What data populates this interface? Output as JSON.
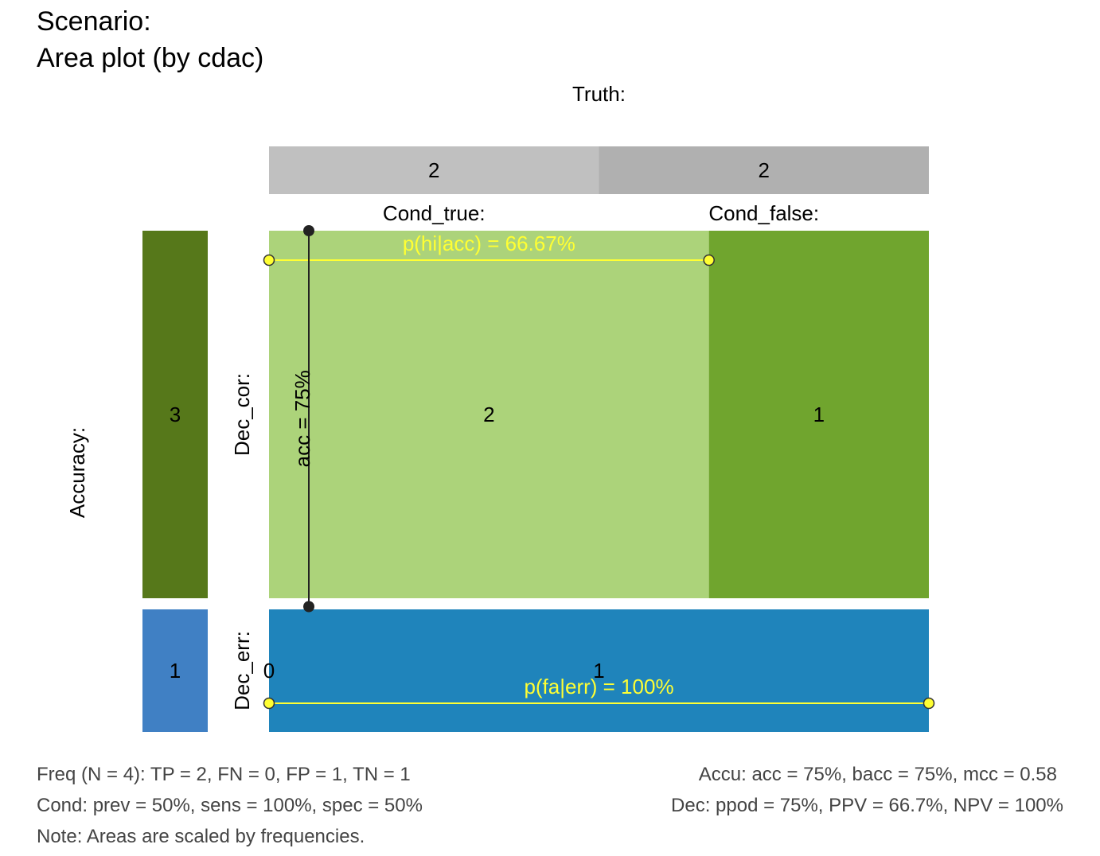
{
  "title": "Scenario:",
  "subtitle": "Area plot (by cdac)",
  "colors": {
    "cond_true": "#c0c0c0",
    "cond_false": "#b0b0b0",
    "dec_cor": "#56781a",
    "dec_err": "#4080c4",
    "hi": "#acd37a",
    "cr": "#70a52e",
    "fa_err": "#1f84bb",
    "prob_line": "#ffff33",
    "acc_line": "#222222"
  },
  "chart_data": {
    "type": "area",
    "N": 4,
    "labels": {
      "truth": "Truth:",
      "cond_true": "Cond_true:",
      "cond_false": "Cond_false:",
      "accuracy": "Accuracy:",
      "dec_cor": "Dec_cor:",
      "dec_err": "Dec_err:"
    },
    "truth_bar": [
      {
        "name": "cond_true",
        "value": 2
      },
      {
        "name": "cond_false",
        "value": 2
      }
    ],
    "accuracy_bar": [
      {
        "name": "dec_cor",
        "value": 3
      },
      {
        "name": "dec_err",
        "value": 1
      }
    ],
    "cells": {
      "dec_cor": [
        {
          "name": "hi",
          "value": 2
        },
        {
          "name": "cr",
          "value": 1
        }
      ],
      "dec_err": [
        {
          "name": "mi",
          "value": 0
        },
        {
          "name": "fa",
          "value": 1
        }
      ]
    },
    "probabilities": {
      "acc": {
        "label": "acc = 75%",
        "value": 0.75
      },
      "p_hi_acc": {
        "label": "p(hi|acc) = 66.67%",
        "value": 0.6667
      },
      "p_fa_err": {
        "label": "p(fa|err) = 100%",
        "value": 1.0
      }
    }
  },
  "footer": {
    "freq": "Freq (N = 4):  TP = 2, FN = 0, FP = 1, TN = 1",
    "cond": "Cond:  prev = 50%, sens = 100%, spec = 50%",
    "note": "Note:  Areas are scaled by frequencies.",
    "accu": "Accu:  acc = 75%, bacc = 75%, mcc = 0.58",
    "dec": "Dec:  ppod = 75%, PPV = 66.7%, NPV = 100%"
  }
}
